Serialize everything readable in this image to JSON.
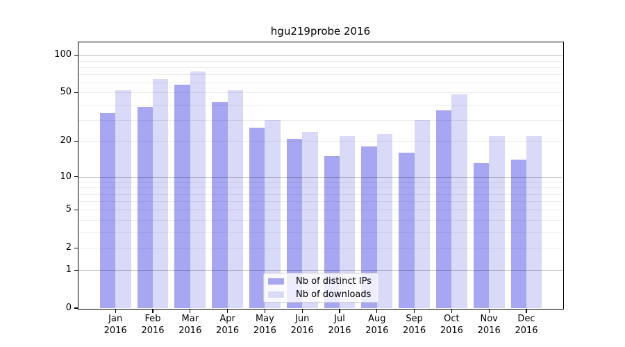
{
  "title": "hgu219probe 2016",
  "chart_data": {
    "type": "bar",
    "title": "hgu219probe 2016",
    "y_scale": "log10(1+x)",
    "grid": "on",
    "legend_position": "lower center",
    "categories": [
      "Jan 2016",
      "Feb 2016",
      "Mar 2016",
      "Apr 2016",
      "May 2016",
      "Jun 2016",
      "Jul 2016",
      "Aug 2016",
      "Sep 2016",
      "Oct 2016",
      "Nov 2016",
      "Dec 2016"
    ],
    "month_labels": [
      "Jan",
      "Feb",
      "Mar",
      "Apr",
      "May",
      "Jun",
      "Jul",
      "Aug",
      "Sep",
      "Oct",
      "Nov",
      "Dec"
    ],
    "year_label": "2016",
    "series": [
      {
        "name": "Nb of distinct IPs",
        "color": "#a6a6f2",
        "values": [
          34,
          38,
          58,
          42,
          26,
          21,
          15,
          18,
          16,
          36,
          13,
          14
        ]
      },
      {
        "name": "Nb of downloads",
        "color": "#d9d9f8",
        "values": [
          52,
          64,
          74,
          52,
          30,
          24,
          22,
          23,
          30,
          48,
          22,
          22
        ]
      }
    ],
    "y_ticks": [
      100,
      50,
      20,
      10,
      5,
      2,
      1,
      0
    ],
    "major_gridlines": [
      1,
      10,
      100
    ],
    "minor_gridlines": [
      2,
      3,
      4,
      5,
      6,
      7,
      8,
      9,
      20,
      30,
      40,
      50,
      60,
      70,
      80,
      90
    ],
    "ylim": [
      0,
      120
    ],
    "xlabel": "",
    "ylabel": ""
  },
  "colors": {
    "distinct_ips_bar": "#a6a6f2",
    "downloads_bar": "#d9d9f8",
    "axis": "#000000",
    "major_gridline": "#bdbdbd",
    "minor_gridline": "#ececec",
    "legend_border": "#cccccc",
    "background": "#ffffff"
  }
}
